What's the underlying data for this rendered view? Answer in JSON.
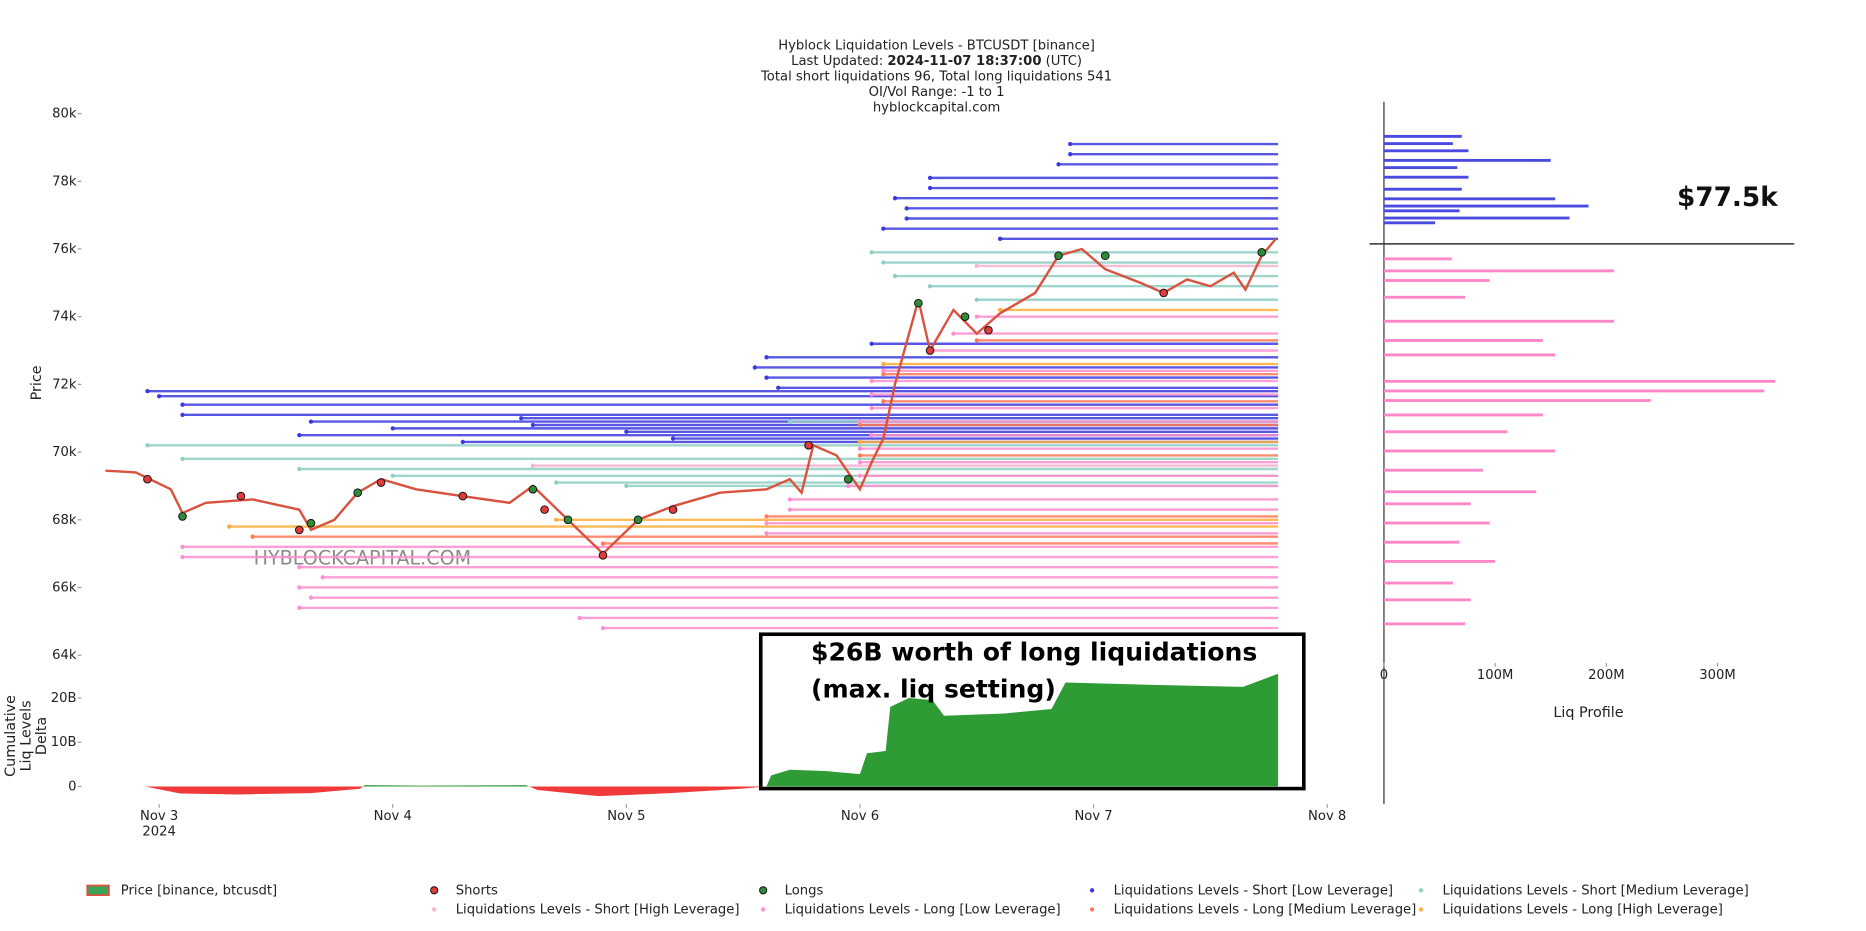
{
  "chart_data": [
    {
      "type": "line",
      "title": "Hyblock Liquidation Levels - BTCUSDT [binance]",
      "updated_label": "Last Updated:",
      "updated_value": "2024-11-07 18:37:00",
      "updated_tz": "(UTC)",
      "totals": "Total short liquidations 96, Total long liquidations 541",
      "range": "OI/Vol Range: -1 to 1",
      "source": "hyblockcapital.com",
      "ylabel": "Price",
      "watermark": "HYBLOCKCAPITAL.COM",
      "xlim": [
        -0.333,
        5.156
      ],
      "ylim": [
        63700,
        80350
      ],
      "yticks": [
        {
          "value": 64000,
          "label": "64k"
        },
        {
          "value": 66000,
          "label": "66k"
        },
        {
          "value": 68000,
          "label": "68k"
        },
        {
          "value": 70000,
          "label": "70k"
        },
        {
          "value": 72000,
          "label": "72k"
        },
        {
          "value": 74000,
          "label": "74k"
        },
        {
          "value": 76000,
          "label": "76k"
        },
        {
          "value": 78000,
          "label": "78k"
        },
        {
          "value": 80000,
          "label": "80k"
        }
      ],
      "series": [
        {
          "name": "Price [binance, btcusdt]",
          "type": "line",
          "color": "#d9523f",
          "x": [
            -0.23,
            -0.1,
            0.05,
            0.1,
            0.2,
            0.4,
            0.6,
            0.65,
            0.75,
            0.85,
            0.95,
            1.1,
            1.3,
            1.5,
            1.6,
            1.75,
            1.9,
            2.05,
            2.2,
            2.4,
            2.6,
            2.7,
            2.75,
            2.8,
            2.9,
            3.0,
            3.05,
            3.1,
            3.15,
            3.25,
            3.3,
            3.4,
            3.5,
            3.6,
            3.75,
            3.85,
            3.95,
            4.05,
            4.2,
            4.3,
            4.4,
            4.5,
            4.6,
            4.65,
            4.72,
            4.78
          ],
          "values": [
            69450,
            69400,
            68900,
            68200,
            68500,
            68600,
            68300,
            67700,
            68000,
            68800,
            69200,
            68900,
            68700,
            68500,
            69000,
            68000,
            67000,
            68000,
            68400,
            68800,
            68900,
            69200,
            68800,
            70200,
            69900,
            68900,
            69700,
            70400,
            72000,
            74500,
            73000,
            74200,
            73500,
            74100,
            74700,
            75800,
            76000,
            75400,
            75000,
            74700,
            75100,
            74900,
            75300,
            74800,
            75800,
            76300
          ]
        },
        {
          "name": "Shorts",
          "type": "scatter",
          "color": "#e03c3c",
          "x": [
            -0.05,
            0.35,
            0.6,
            0.95,
            1.3,
            1.65,
            1.9,
            2.2,
            2.78,
            3.3,
            3.55,
            4.3
          ],
          "values": [
            69200,
            68700,
            67700,
            69100,
            68700,
            68300,
            66950,
            68300,
            70200,
            73000,
            73600,
            74700
          ]
        },
        {
          "name": "Longs",
          "type": "scatter",
          "color": "#2e8b3a",
          "x": [
            0.1,
            0.65,
            0.85,
            1.6,
            1.75,
            2.05,
            2.95,
            3.25,
            3.45,
            3.85,
            4.05,
            4.72
          ],
          "values": [
            68100,
            67900,
            68800,
            68900,
            68000,
            68000,
            69200,
            74400,
            74000,
            75800,
            75800,
            75900
          ]
        },
        {
          "name": "Liquidations Levels - Short [Low Leverage]",
          "type": "levels",
          "color": "#3a3ae0",
          "x_end": 4.79,
          "levels": [
            [
              71800,
              -0.05
            ],
            [
              71650,
              0.0
            ],
            [
              71400,
              0.1
            ],
            [
              71100,
              0.1
            ],
            [
              70900,
              0.65
            ],
            [
              70700,
              1.0
            ],
            [
              70500,
              0.6
            ],
            [
              70300,
              1.3
            ],
            [
              71000,
              1.55
            ],
            [
              70800,
              1.6
            ],
            [
              70600,
              2.0
            ],
            [
              70400,
              2.2
            ],
            [
              72800,
              2.6
            ],
            [
              72500,
              2.55
            ],
            [
              72200,
              2.6
            ],
            [
              71900,
              2.65
            ],
            [
              73200,
              3.05
            ],
            [
              76600,
              3.1
            ],
            [
              76900,
              3.2
            ],
            [
              77200,
              3.2
            ],
            [
              77500,
              3.15
            ],
            [
              77800,
              3.3
            ],
            [
              78100,
              3.3
            ],
            [
              76300,
              3.6
            ],
            [
              78800,
              3.9
            ],
            [
              79100,
              3.9
            ],
            [
              78500,
              3.85
            ]
          ]
        },
        {
          "name": "Liquidations Levels - Short [Medium Leverage]",
          "type": "levels",
          "color": "#8fcfc4",
          "x_end": 4.79,
          "levels": [
            [
              69800,
              0.1
            ],
            [
              70200,
              -0.05
            ],
            [
              69500,
              0.6
            ],
            [
              69300,
              1.0
            ],
            [
              69100,
              1.7
            ],
            [
              69000,
              2.0
            ],
            [
              70900,
              2.7
            ],
            [
              75900,
              3.05
            ],
            [
              75600,
              3.1
            ],
            [
              75200,
              3.15
            ],
            [
              74900,
              3.3
            ],
            [
              74500,
              3.5
            ]
          ]
        },
        {
          "name": "Liquidations Levels - Short [High Leverage]",
          "type": "levels",
          "color": "#f7b3d0",
          "x_end": 4.79,
          "levels": [
            [
              69600,
              1.6
            ],
            [
              75500,
              3.5
            ]
          ]
        },
        {
          "name": "Liquidations Levels - Long [Low Leverage]",
          "type": "levels",
          "color": "#ff8fd0",
          "x_end": 4.79,
          "levels": [
            [
              67200,
              0.1
            ],
            [
              66900,
              0.1
            ],
            [
              66600,
              0.6
            ],
            [
              66300,
              0.7
            ],
            [
              66000,
              0.6
            ],
            [
              65700,
              0.65
            ],
            [
              65400,
              0.6
            ],
            [
              65100,
              1.8
            ],
            [
              64800,
              1.9
            ],
            [
              67600,
              2.6
            ],
            [
              67900,
              2.6
            ],
            [
              68300,
              2.7
            ],
            [
              68600,
              2.7
            ],
            [
              69000,
              2.95
            ],
            [
              69300,
              3.0
            ],
            [
              69700,
              3.0
            ],
            [
              70100,
              3.0
            ],
            [
              70500,
              3.05
            ],
            [
              70900,
              3.0
            ],
            [
              71300,
              3.05
            ],
            [
              71700,
              3.05
            ],
            [
              72100,
              3.05
            ],
            [
              72400,
              3.1
            ],
            [
              73000,
              3.3
            ],
            [
              73500,
              3.4
            ],
            [
              74000,
              3.5
            ]
          ]
        },
        {
          "name": "Liquidations Levels - Long [Medium Leverage]",
          "type": "levels",
          "color": "#ff7a59",
          "x_end": 4.79,
          "levels": [
            [
              67500,
              0.4
            ],
            [
              67300,
              1.9
            ],
            [
              68100,
              2.6
            ],
            [
              69900,
              3.0
            ],
            [
              70800,
              3.0
            ],
            [
              71500,
              3.1
            ],
            [
              72300,
              3.1
            ],
            [
              73300,
              3.5
            ]
          ]
        },
        {
          "name": "Liquidations Levels - Long [High Leverage]",
          "type": "levels",
          "color": "#ffae3a",
          "x_end": 4.79,
          "levels": [
            [
              67800,
              0.3
            ],
            [
              68000,
              1.7
            ],
            [
              70300,
              3.0
            ],
            [
              72600,
              3.1
            ],
            [
              74200,
              3.6
            ]
          ]
        }
      ]
    },
    {
      "type": "area",
      "ylabel_lines": [
        "Cumulative",
        "Liq Levels",
        "Delta"
      ],
      "xlim": [
        -0.333,
        5.156
      ],
      "ylim": [
        -4,
        26.3
      ],
      "xticks": [
        {
          "value": 0,
          "label": "Nov 3"
        },
        {
          "value": 1,
          "label": "Nov 4"
        },
        {
          "value": 2,
          "label": "Nov 5"
        },
        {
          "value": 3,
          "label": "Nov 6"
        },
        {
          "value": 4,
          "label": "Nov 7"
        },
        {
          "value": 5,
          "label": "Nov 8"
        }
      ],
      "x_year_label": "2024",
      "yticks": [
        0,
        {
          "value": 10,
          "label": "10B"
        },
        {
          "value": 20,
          "label": "20B"
        }
      ],
      "pos_color": "#2e9b34",
      "neg_color": "#f03a3a",
      "x": [
        -0.23,
        -0.06,
        0.09,
        0.34,
        0.65,
        0.86,
        0.88,
        1.11,
        1.57,
        1.62,
        1.88,
        2.19,
        2.49,
        2.6,
        2.62,
        2.7,
        2.85,
        3.0,
        3.03,
        3.11,
        3.13,
        3.21,
        3.31,
        3.36,
        3.62,
        3.82,
        3.88,
        4.23,
        4.64,
        4.69,
        4.79
      ],
      "values": [
        0,
        0,
        -1.6,
        -1.8,
        -1.5,
        -0.5,
        0.3,
        0.2,
        0.3,
        -0.8,
        -2.2,
        -1.5,
        -0.5,
        0,
        2.5,
        3.8,
        3.5,
        2.8,
        7.5,
        8,
        18,
        20,
        19.5,
        16,
        16.5,
        17.5,
        23.5,
        23,
        22.5,
        23.5,
        25.5
      ],
      "annotations": [
        "$26B worth of long liquidations",
        "(max. liq setting)"
      ]
    },
    {
      "type": "bar",
      "orientation": "horizontal",
      "xlabel": "Liq Profile",
      "xlim": [
        0,
        369
      ],
      "ylim": [
        63700,
        80350
      ],
      "xticks": [
        0,
        {
          "value": 100,
          "label": "100M"
        },
        {
          "value": 200,
          "label": "200M"
        },
        {
          "value": 300,
          "label": "300M"
        }
      ],
      "price_line": 76150,
      "annotation": "$77.5k",
      "series": [
        {
          "color": "#4a4ae0",
          "y": [
            79326,
            79113,
            78900,
            78617,
            78404,
            78120,
            77765,
            77481,
            77268,
            77127,
            76914,
            76772
          ],
          "values": [
            70,
            62,
            76,
            150,
            66,
            76,
            70,
            154,
            184,
            68,
            167,
            46
          ]
        },
        {
          "color": "#ff86c8",
          "y": [
            75708,
            75353,
            75069,
            74573,
            73864,
            73296,
            72870,
            72090,
            71806,
            71523,
            71097,
            70600,
            70033,
            69465,
            68827,
            68472,
            67905,
            67337,
            66770,
            66131,
            65635,
            64925
          ],
          "values": [
            61,
            207,
            95,
            73,
            207,
            143,
            154,
            352,
            342,
            240,
            143,
            111,
            154,
            89,
            137,
            78,
            95,
            68,
            100,
            62,
            78,
            73
          ]
        }
      ]
    }
  ]
}
